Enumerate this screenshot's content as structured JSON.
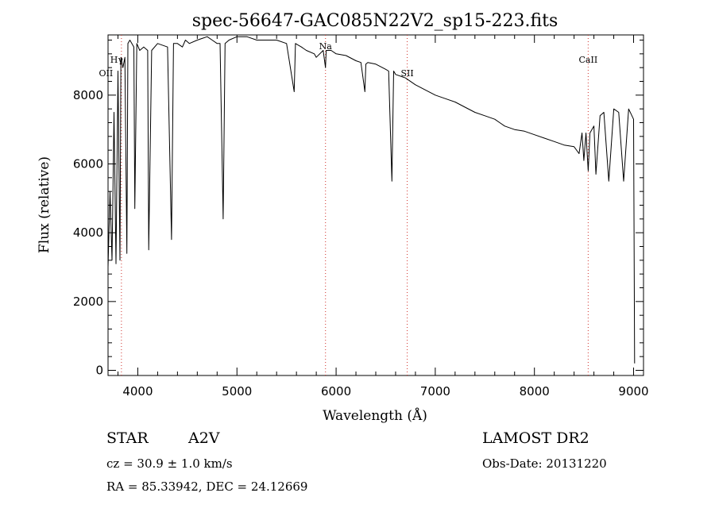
{
  "chart_data": {
    "type": "line",
    "title": "spec-56647-GAC085N22V2_sp15-223.fits",
    "xlabel": "Wavelength (Å)",
    "ylabel": "Flux (relative)",
    "xlim": [
      3700,
      9100
    ],
    "ylim": [
      -150,
      9750
    ],
    "xticks": [
      4000,
      5000,
      6000,
      7000,
      8000,
      9000
    ],
    "yticks": [
      0,
      2000,
      4000,
      6000,
      8000
    ],
    "grid": false,
    "series": [
      {
        "x": [
          3700,
          3720,
          3740,
          3760,
          3780,
          3800,
          3820,
          3830,
          3850,
          3870,
          3890,
          3900,
          3920,
          3960,
          3970,
          3990,
          4020,
          4060,
          4100,
          4110,
          4140,
          4200,
          4300,
          4340,
          4360,
          4400,
          4450,
          4480,
          4520,
          4600,
          4700,
          4750,
          4800,
          4830,
          4861,
          4880,
          4920,
          5000,
          5100,
          5200,
          5300,
          5400,
          5500,
          5577,
          5590,
          5650,
          5700,
          5780,
          5800,
          5870,
          5893,
          5900,
          5950,
          6000,
          6100,
          6200,
          6250,
          6290,
          6300,
          6320,
          6400,
          6500,
          6530,
          6563,
          6580,
          6600,
          6700,
          6800,
          6900,
          7000,
          7100,
          7200,
          7300,
          7400,
          7500,
          7600,
          7650,
          7700,
          7800,
          7900,
          8000,
          8100,
          8200,
          8300,
          8400,
          8450,
          8480,
          8498,
          8520,
          8542,
          8560,
          8600,
          8620,
          8662,
          8700,
          8750,
          8800,
          8850,
          8900,
          8950,
          9000,
          9010
        ],
        "y": [
          3000,
          5200,
          3200,
          7500,
          3100,
          8700,
          3200,
          9100,
          8800,
          9100,
          3400,
          9500,
          9600,
          9400,
          4700,
          9500,
          9300,
          9400,
          9300,
          3500,
          9300,
          9500,
          9400,
          3800,
          9500,
          9500,
          9400,
          9600,
          9500,
          9600,
          9700,
          9600,
          9500,
          9500,
          4400,
          9500,
          9600,
          9700,
          9700,
          9600,
          9600,
          9600,
          9500,
          8100,
          9500,
          9400,
          9300,
          9200,
          9100,
          9300,
          8800,
          9300,
          9300,
          9200,
          9150,
          9000,
          8950,
          8100,
          8900,
          8950,
          8900,
          8750,
          8700,
          5500,
          8700,
          8600,
          8500,
          8300,
          8150,
          8000,
          7900,
          7800,
          7650,
          7500,
          7400,
          7300,
          7200,
          7100,
          7000,
          6950,
          6850,
          6750,
          6650,
          6550,
          6500,
          6300,
          6900,
          6100,
          6900,
          5800,
          6900,
          7100,
          5700,
          7400,
          7500,
          5500,
          7600,
          7500,
          5500,
          7600,
          7300,
          200
        ]
      }
    ],
    "annotations": [
      {
        "label": "OII",
        "x": 3727
      },
      {
        "label": "Hγ",
        "x": 3835
      },
      {
        "label": "Na",
        "x": 5893
      },
      {
        "label": "SII",
        "x": 6717
      },
      {
        "label": "CaII",
        "x": 8542
      }
    ],
    "marker_lines": [
      3835,
      5893,
      6717,
      8542
    ],
    "line_color": "#000000",
    "marker_color": "#d0302a"
  },
  "footer": {
    "object_type": "STAR",
    "subclass": "A2V",
    "survey": "LAMOST DR2",
    "cz": "cz = 30.9 ± 1.0 km/s",
    "obs_date": "Obs-Date: 20131220",
    "radec": "RA =  85.33942, DEC =  24.12669"
  }
}
